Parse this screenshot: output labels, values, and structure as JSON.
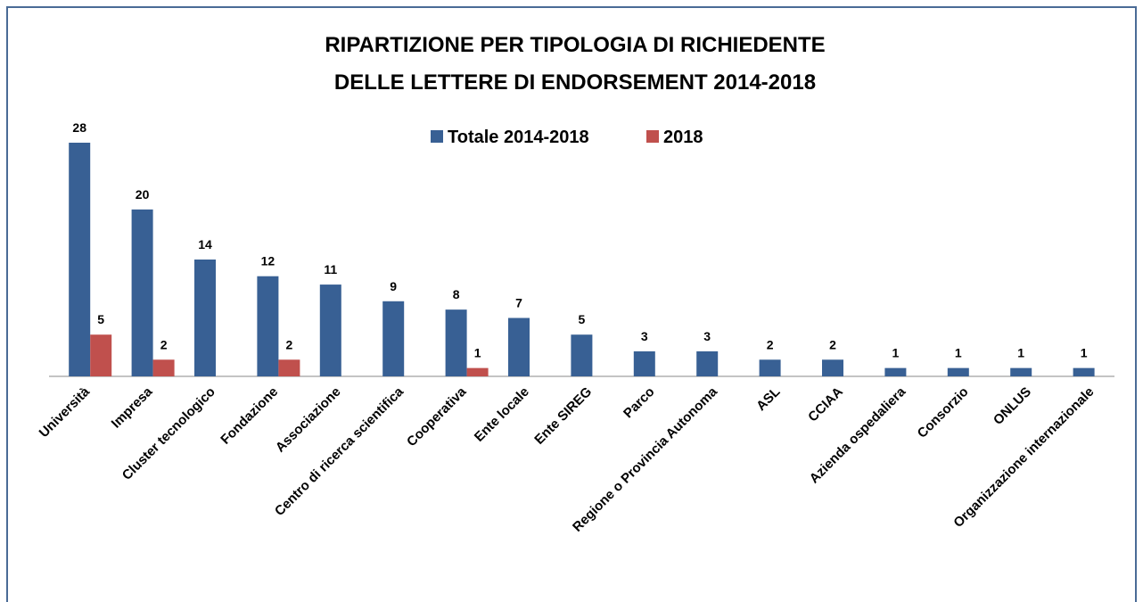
{
  "chart_data": {
    "type": "bar",
    "title": [
      "RIPARTIZIONE PER TIPOLOGIA DI RICHIEDENTE",
      "DELLE LETTERE DI ENDORSEMENT 2014-2018"
    ],
    "categories": [
      "Università",
      "Impresa",
      "Cluster tecnologico",
      "Fondazione",
      "Associazione",
      "Centro di ricerca scientifica",
      "Cooperativa",
      "Ente locale",
      "Ente SIREG",
      "Parco",
      "Regione o Provincia Autonoma",
      "ASL",
      "CCIAA",
      "Azienda ospedaliera",
      "Consorzio",
      "ONLUS",
      "Organizzazione internazionale"
    ],
    "series": [
      {
        "name": "Totale 2014-2018",
        "color": "#386094",
        "values": [
          28,
          20,
          14,
          12,
          11,
          9,
          8,
          7,
          5,
          3,
          3,
          2,
          2,
          1,
          1,
          1,
          1
        ]
      },
      {
        "name": "2018",
        "color": "#c0504d",
        "values": [
          5,
          2,
          null,
          2,
          null,
          null,
          1,
          null,
          null,
          null,
          null,
          null,
          null,
          null,
          null,
          null,
          null
        ]
      }
    ],
    "ylim": [
      0,
      28
    ],
    "legend": "top"
  }
}
